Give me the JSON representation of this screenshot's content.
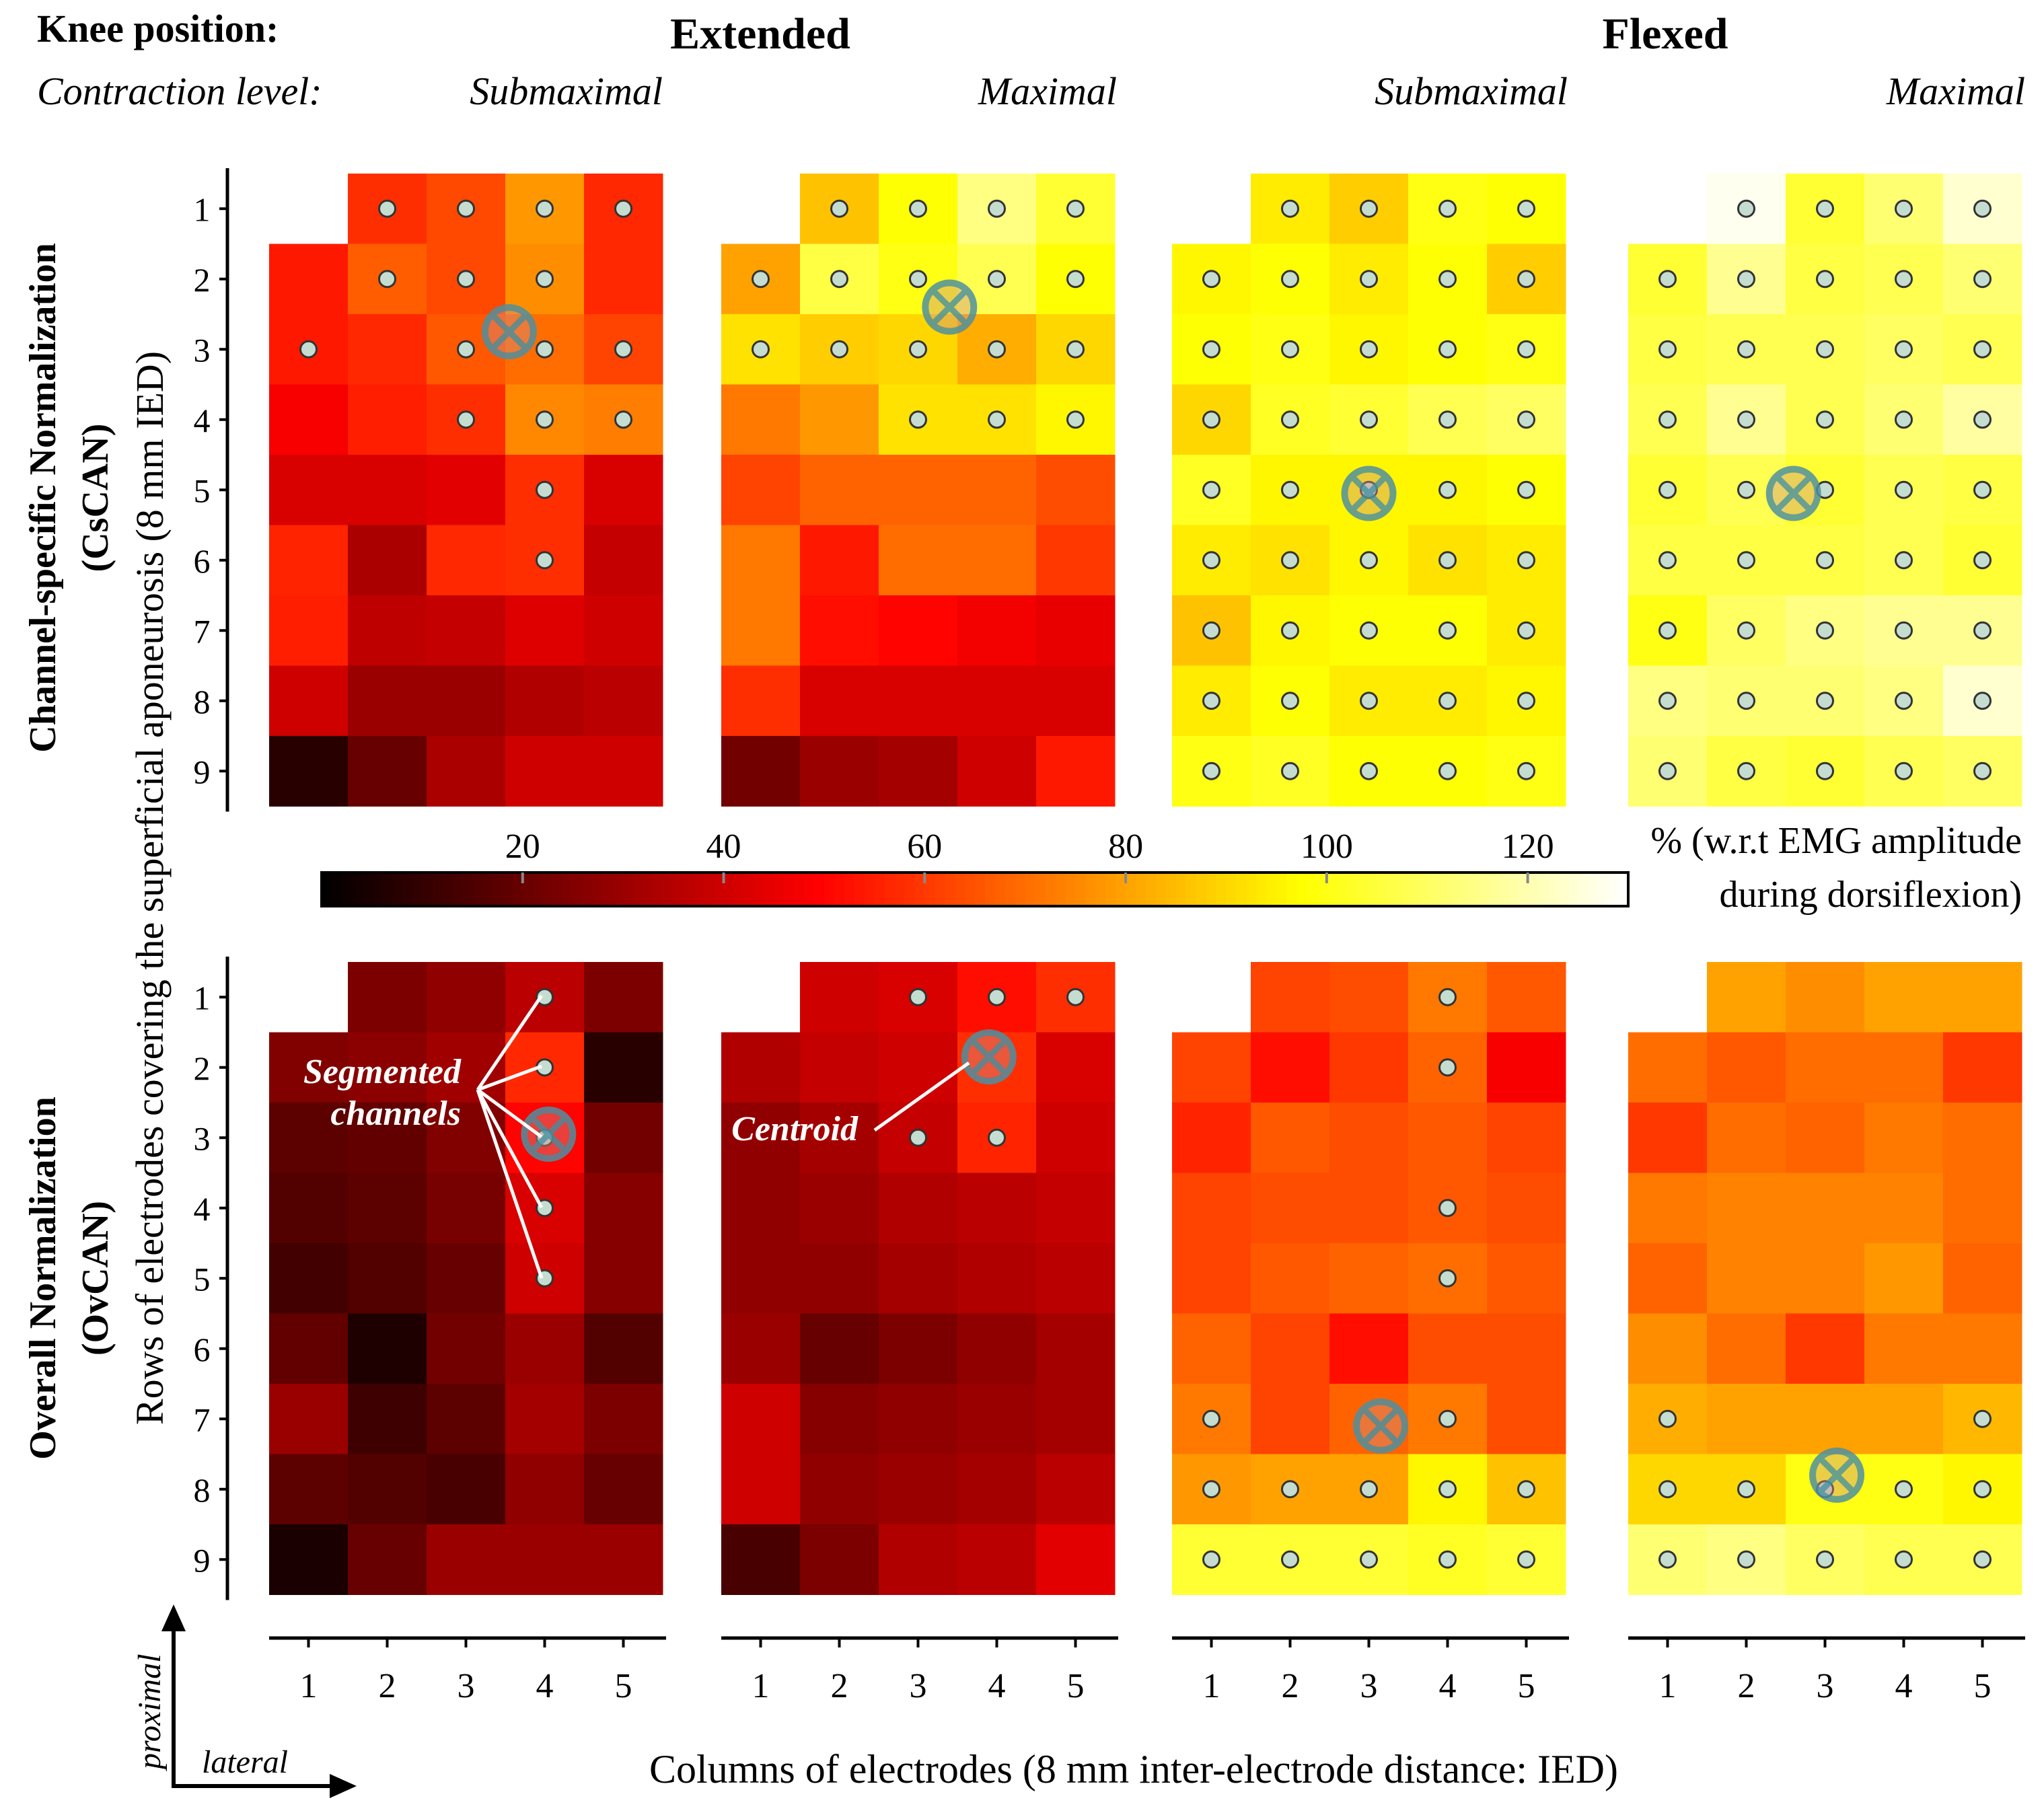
{
  "header": {
    "knee_label": "Knee position:",
    "extended": "Extended",
    "flexed": "Flexed",
    "contraction_label": "Contraction level:",
    "submaximal": "Submaximal",
    "maximal": "Maximal"
  },
  "y_axis": {
    "top_group_line1": "Channel-specific Normalization",
    "top_group_line2": "(CsCAN)",
    "bottom_group_line1": "Overall Normalization",
    "bottom_group_line2": "(OvCAN)",
    "shared_label": "Rows of electrodes covering the superficial aponeurosis (8 mm IED)"
  },
  "x_axis": {
    "label": "Columns of electrodes (8 mm inter-electrode distance: IED)"
  },
  "direction": {
    "vertical": "proximal",
    "horizontal": "lateral"
  },
  "colorbar": {
    "ticks": [
      "20",
      "40",
      "60",
      "80",
      "100",
      "120"
    ],
    "tick_values": [
      20,
      40,
      60,
      80,
      100,
      120
    ],
    "min": 0,
    "max": 130,
    "unit_line1": "% (w.r.t EMG amplitude",
    "unit_line2": "during dorsiflexion)"
  },
  "annotations": {
    "segmented_line1": "Segmented",
    "segmented_line2": "channels",
    "centroid": "Centroid"
  },
  "colors": {
    "marker_fill": "#c5ddd0",
    "marker_stroke": "#333333",
    "centroid": "#4f90a0"
  },
  "chart_data": {
    "type": "heatmap",
    "rows": [
      "1",
      "2",
      "3",
      "4",
      "5",
      "6",
      "7",
      "8",
      "9"
    ],
    "columns": [
      "1",
      "2",
      "3",
      "4",
      "5"
    ],
    "value_unit": "% w.r.t EMG amplitude during dorsiflexion (null = missing channel)",
    "panels": [
      {
        "group": "CsCAN",
        "knee": "Extended",
        "level": "Submaximal",
        "values": [
          [
            null,
            58,
            63,
            78,
            57
          ],
          [
            54,
            67,
            63,
            76,
            57
          ],
          [
            54,
            57,
            66,
            70,
            62
          ],
          [
            48,
            55,
            58,
            75,
            73
          ],
          [
            42,
            42,
            44,
            58,
            42
          ],
          [
            56,
            33,
            57,
            58,
            38
          ],
          [
            55,
            37,
            38,
            43,
            40
          ],
          [
            40,
            30,
            30,
            34,
            36
          ],
          [
            8,
            20,
            33,
            40,
            40
          ]
        ],
        "segmented": [
          [
            2,
            1
          ],
          [
            3,
            1
          ],
          [
            4,
            1
          ],
          [
            5,
            1
          ],
          [
            2,
            2
          ],
          [
            3,
            2
          ],
          [
            4,
            2
          ],
          [
            1,
            3
          ],
          [
            3,
            3
          ],
          [
            4,
            3
          ],
          [
            5,
            3
          ],
          [
            3,
            4
          ],
          [
            4,
            4
          ],
          [
            5,
            4
          ],
          [
            4,
            5
          ],
          [
            4,
            6
          ]
        ],
        "centroid": [
          3.55,
          2.75
        ]
      },
      {
        "group": "CsCAN",
        "knee": "Extended",
        "level": "Maximal",
        "values": [
          [
            null,
            86,
            98,
            114,
            104
          ],
          [
            80,
            106,
            100,
            108,
            98
          ],
          [
            92,
            88,
            90,
            82,
            90
          ],
          [
            72,
            78,
            92,
            92,
            96
          ],
          [
            62,
            68,
            68,
            68,
            64
          ],
          [
            72,
            54,
            70,
            70,
            60
          ],
          [
            72,
            52,
            50,
            47,
            45
          ],
          [
            58,
            42,
            42,
            42,
            42
          ],
          [
            22,
            30,
            32,
            40,
            54
          ]
        ],
        "segmented": [
          [
            2,
            1
          ],
          [
            3,
            1
          ],
          [
            4,
            1
          ],
          [
            5,
            1
          ],
          [
            1,
            2
          ],
          [
            2,
            2
          ],
          [
            3,
            2
          ],
          [
            4,
            2
          ],
          [
            5,
            2
          ],
          [
            1,
            3
          ],
          [
            2,
            3
          ],
          [
            3,
            3
          ],
          [
            4,
            3
          ],
          [
            5,
            3
          ],
          [
            3,
            4
          ],
          [
            4,
            4
          ],
          [
            5,
            4
          ]
        ],
        "centroid": [
          3.4,
          2.4
        ]
      },
      {
        "group": "CsCAN",
        "knee": "Flexed",
        "level": "Submaximal",
        "values": [
          [
            null,
            94,
            88,
            100,
            98
          ],
          [
            96,
            98,
            94,
            98,
            88
          ],
          [
            98,
            100,
            96,
            98,
            100
          ],
          [
            90,
            102,
            104,
            108,
            110
          ],
          [
            102,
            96,
            96,
            96,
            98
          ],
          [
            94,
            92,
            96,
            92,
            94
          ],
          [
            86,
            96,
            98,
            98,
            94
          ],
          [
            94,
            98,
            94,
            94,
            96
          ],
          [
            100,
            102,
            98,
            98,
            100
          ]
        ],
        "segmented": "all",
        "centroid": [
          3.0,
          5.05
        ]
      },
      {
        "group": "CsCAN",
        "knee": "Flexed",
        "level": "Maximal",
        "values": [
          [
            null,
            128,
            104,
            112,
            124
          ],
          [
            104,
            116,
            106,
            108,
            112
          ],
          [
            106,
            108,
            108,
            110,
            108
          ],
          [
            108,
            116,
            108,
            112,
            118
          ],
          [
            104,
            108,
            104,
            108,
            106
          ],
          [
            106,
            106,
            106,
            108,
            104
          ],
          [
            100,
            110,
            114,
            116,
            116
          ],
          [
            114,
            112,
            112,
            114,
            124
          ],
          [
            112,
            106,
            104,
            108,
            110
          ]
        ],
        "segmented": "all",
        "centroid": [
          2.6,
          5.05
        ]
      },
      {
        "group": "OvCAN",
        "knee": "Extended",
        "level": "Submaximal",
        "values": [
          [
            null,
            24,
            28,
            36,
            24
          ],
          [
            25,
            27,
            31,
            57,
            8
          ],
          [
            18,
            19,
            25,
            50,
            22
          ],
          [
            16,
            18,
            23,
            42,
            26
          ],
          [
            13,
            16,
            20,
            40,
            26
          ],
          [
            19,
            6,
            22,
            30,
            16
          ],
          [
            30,
            12,
            18,
            32,
            24
          ],
          [
            18,
            16,
            14,
            28,
            20
          ],
          [
            5,
            20,
            30,
            30,
            30
          ]
        ],
        "segmented": [
          [
            4,
            1
          ],
          [
            4,
            2
          ],
          [
            4,
            3
          ],
          [
            4,
            4
          ],
          [
            4,
            5
          ]
        ],
        "centroid": [
          4.05,
          2.95
        ]
      },
      {
        "group": "OvCAN",
        "knee": "Extended",
        "level": "Maximal",
        "values": [
          [
            null,
            40,
            42,
            52,
            58
          ],
          [
            34,
            38,
            40,
            58,
            42
          ],
          [
            28,
            32,
            38,
            56,
            40
          ],
          [
            28,
            30,
            34,
            36,
            38
          ],
          [
            28,
            28,
            32,
            34,
            36
          ],
          [
            30,
            20,
            24,
            28,
            32
          ],
          [
            40,
            26,
            28,
            30,
            32
          ],
          [
            40,
            28,
            30,
            32,
            36
          ],
          [
            14,
            24,
            34,
            36,
            44
          ]
        ],
        "segmented": [
          [
            3,
            1
          ],
          [
            4,
            1
          ],
          [
            5,
            1
          ],
          [
            3,
            3
          ],
          [
            4,
            3
          ]
        ],
        "centroid": [
          3.9,
          1.85
        ]
      },
      {
        "group": "OvCAN",
        "knee": "Flexed",
        "level": "Submaximal",
        "values": [
          [
            null,
            62,
            64,
            72,
            66
          ],
          [
            62,
            52,
            60,
            68,
            48
          ],
          [
            56,
            66,
            64,
            66,
            62
          ],
          [
            62,
            64,
            64,
            66,
            64
          ],
          [
            62,
            66,
            68,
            70,
            66
          ],
          [
            68,
            62,
            52,
            64,
            64
          ],
          [
            72,
            62,
            68,
            72,
            64
          ],
          [
            78,
            80,
            80,
            96,
            86
          ],
          [
            104,
            104,
            104,
            102,
            104
          ]
        ],
        "segmented": [
          [
            4,
            1
          ],
          [
            4,
            2
          ],
          [
            4,
            4
          ],
          [
            4,
            5
          ],
          [
            1,
            7
          ],
          [
            4,
            7
          ],
          [
            1,
            8
          ],
          [
            2,
            8
          ],
          [
            3,
            8
          ],
          [
            4,
            8
          ],
          [
            5,
            8
          ],
          [
            1,
            9
          ],
          [
            2,
            9
          ],
          [
            3,
            9
          ],
          [
            4,
            9
          ],
          [
            5,
            9
          ]
        ],
        "centroid": [
          3.15,
          7.1
        ]
      },
      {
        "group": "OvCAN",
        "knee": "Flexed",
        "level": "Maximal",
        "values": [
          [
            null,
            80,
            76,
            80,
            80
          ],
          [
            70,
            66,
            70,
            70,
            60
          ],
          [
            60,
            70,
            68,
            72,
            70
          ],
          [
            72,
            74,
            74,
            74,
            70
          ],
          [
            68,
            74,
            74,
            78,
            68
          ],
          [
            76,
            70,
            60,
            72,
            72
          ],
          [
            82,
            80,
            80,
            80,
            84
          ],
          [
            90,
            90,
            100,
            100,
            96
          ],
          [
            112,
            114,
            110,
            108,
            108
          ]
        ],
        "segmented": [
          [
            1,
            7
          ],
          [
            5,
            7
          ],
          [
            1,
            8
          ],
          [
            2,
            8
          ],
          [
            3,
            8
          ],
          [
            4,
            8
          ],
          [
            5,
            8
          ],
          [
            1,
            9
          ],
          [
            2,
            9
          ],
          [
            3,
            9
          ],
          [
            4,
            9
          ],
          [
            5,
            9
          ]
        ],
        "centroid": [
          3.15,
          7.8
        ]
      }
    ]
  }
}
